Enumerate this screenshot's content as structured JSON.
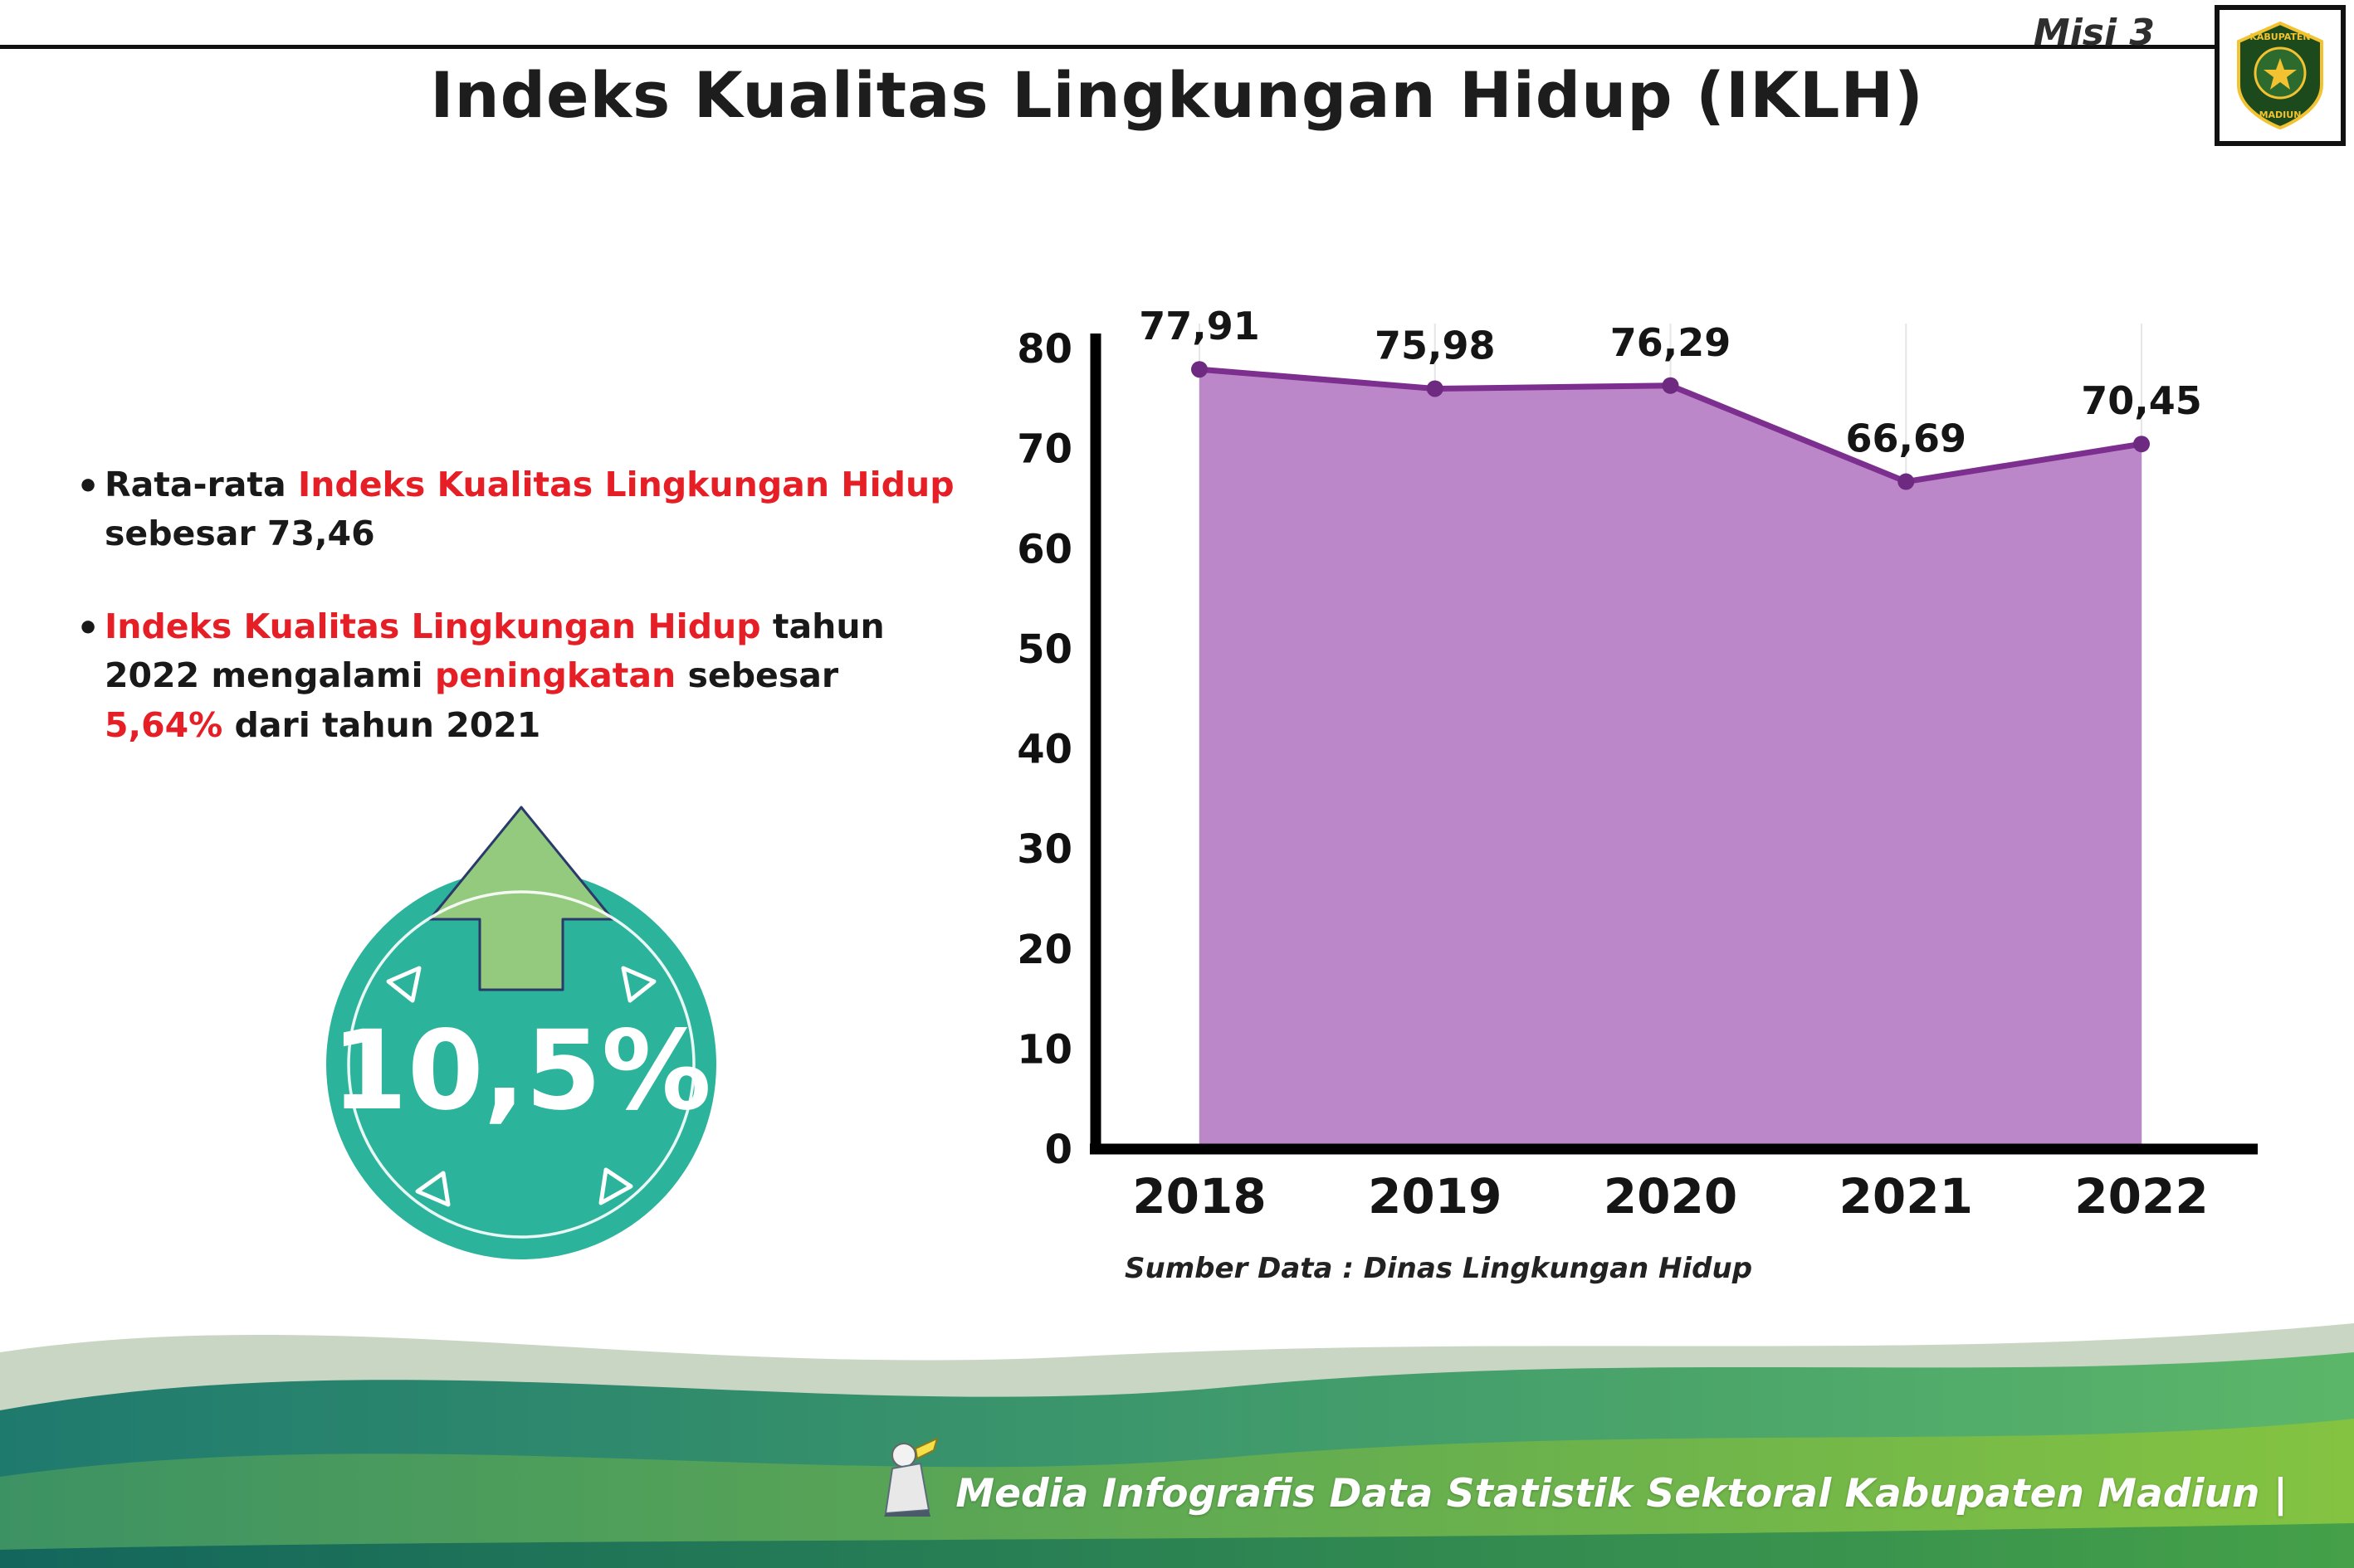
{
  "header": {
    "misi": "Misi 3",
    "title": "Indeks Kualitas Lingkungan Hidup (IKLH)",
    "logo": {
      "top_text": "KABUPATEN",
      "bottom_text": "MADIUN"
    }
  },
  "bullets": {
    "marker": "•",
    "b1": {
      "s1": "Rata-rata ",
      "s2": "Indeks Kualitas Lingkungan Hidup",
      "s3": " sebesar 73,46"
    },
    "b2": {
      "s1": "Indeks Kualitas Lingkungan Hidup",
      "s2": " tahun 2022 mengalami ",
      "s3": "peningkatan",
      "s4": " sebesar ",
      "s5": "5,64%",
      "s6": " dari tahun 2021"
    }
  },
  "badge": {
    "value": "10,5%"
  },
  "chart_data": {
    "type": "area",
    "title": "Indeks Kualitas Lingkungan Hidup (IKLH)",
    "categories": [
      "2018",
      "2019",
      "2020",
      "2021",
      "2022"
    ],
    "values": [
      77.91,
      75.98,
      76.29,
      66.69,
      70.45
    ],
    "labels": [
      "77,91",
      "75,98",
      "76,29",
      "66,69",
      "70,45"
    ],
    "ylim": [
      0,
      80
    ],
    "yticks": [
      0,
      10,
      20,
      30,
      40,
      50,
      60,
      70,
      80
    ],
    "grid": "vertical",
    "legend": "none",
    "source": "Sumber Data : Dinas Lingkungan Hidup",
    "colors": {
      "area": "#bc87c9",
      "line": "#7c2f8e",
      "point": "#6d2a80",
      "axis": "#000000",
      "grid": "#e6e6e6"
    }
  },
  "footer": {
    "credit": "Media Infografis Data Statistik Sektoral Kabupaten Madiun |"
  },
  "colors": {
    "red": "#e61e25",
    "teal_circle": "#2cb39b",
    "arrow_green": "#93ca7d",
    "footer_teal": "#1f7a6e",
    "footer_green": "#84c341"
  }
}
